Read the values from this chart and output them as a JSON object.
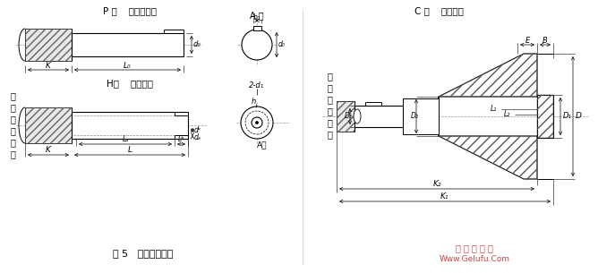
{
  "bg_color": "#ffffff",
  "title_p": "P 型    圓柱型軸伸",
  "title_h": "H型    花鍵軸伸",
  "title_c": "C 型    齒輪軸伸",
  "label_a1": "A 向",
  "label_a2": "A向",
  "fig_caption": "图 5   低速軸端型式",
  "watermark1": "格 鲁 夫 机 械",
  "watermark2": "Www.Gelufu.Com",
  "left_label": [
    "减",
    "速",
    "器",
    "中",
    "心",
    "線"
  ],
  "right_label": [
    "减",
    "速",
    "器",
    "中",
    "心",
    "線"
  ],
  "wm_color": "#cc4444"
}
